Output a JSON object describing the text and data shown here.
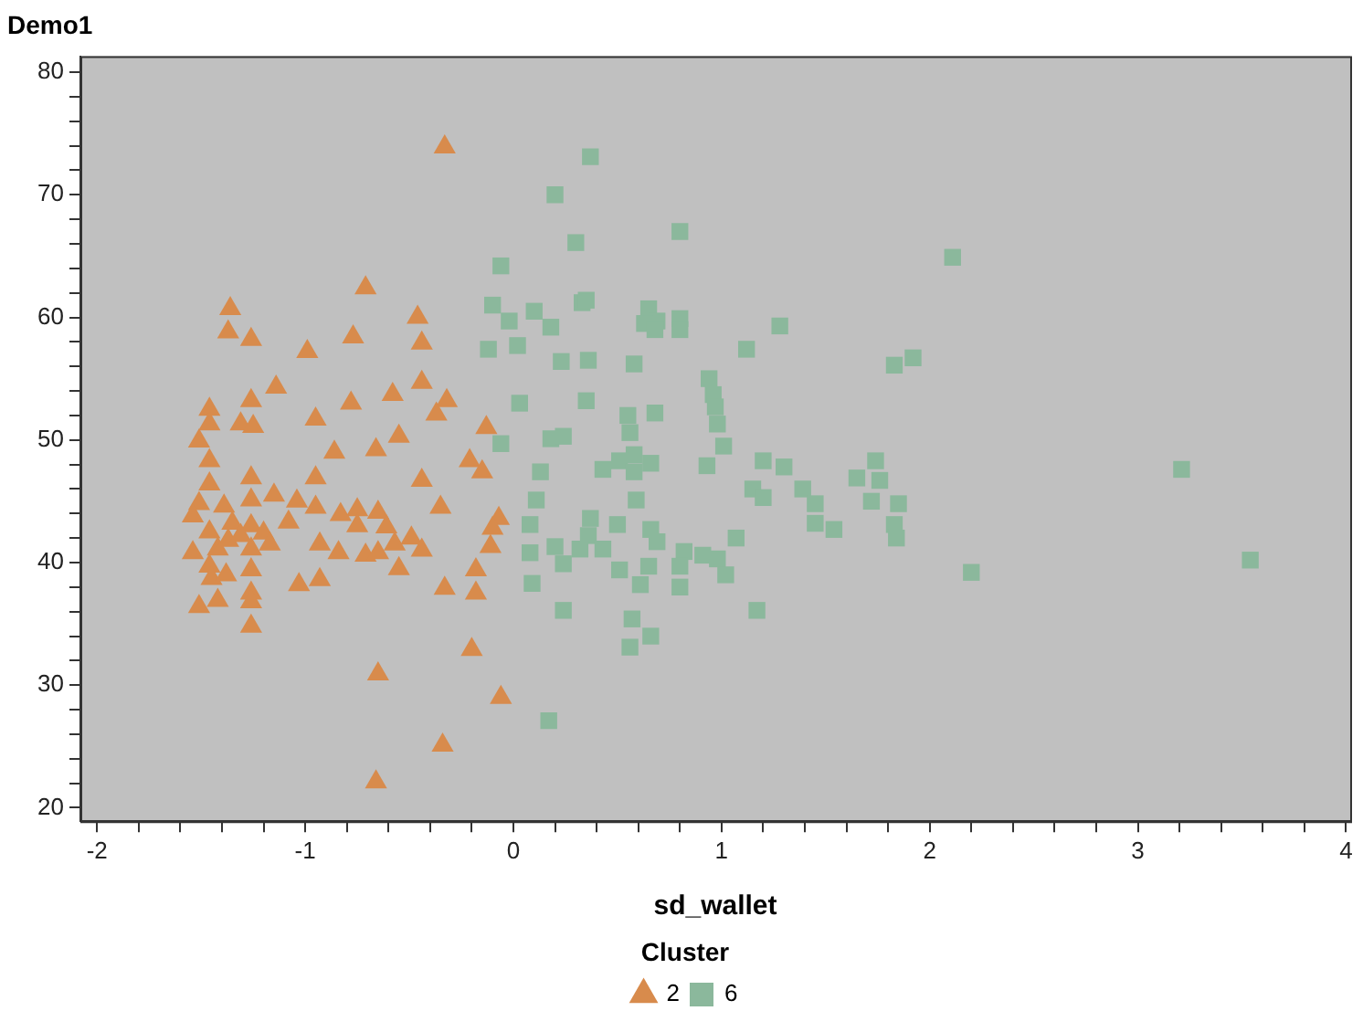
{
  "chart_data": {
    "type": "scatter",
    "title": "Demo1",
    "xlabel": "sd_wallet",
    "legend_title": "Cluster",
    "legend": "bottom",
    "grid": false,
    "xlim": [
      -2.08,
      4.02
    ],
    "ylim": [
      18.9,
      81.3
    ],
    "xticks": [
      -2,
      {
        "value": -1.8,
        "label": null
      },
      {
        "value": -1.6,
        "label": null
      },
      {
        "value": -1.4,
        "label": null
      },
      {
        "value": -1.2,
        "label": null
      },
      -1,
      {
        "value": -0.8,
        "label": null
      },
      {
        "value": -0.6,
        "label": null
      },
      {
        "value": -0.4,
        "label": null
      },
      {
        "value": -0.2,
        "label": null
      },
      0,
      {
        "value": 0.2,
        "label": null
      },
      {
        "value": 0.4,
        "label": null
      },
      {
        "value": 0.6,
        "label": null
      },
      {
        "value": 0.8,
        "label": null
      },
      1,
      {
        "value": 1.2,
        "label": null
      },
      {
        "value": 1.4,
        "label": null
      },
      {
        "value": 1.6,
        "label": null
      },
      {
        "value": 1.8,
        "label": null
      },
      2,
      {
        "value": 2.2,
        "label": null
      },
      {
        "value": 2.4,
        "label": null
      },
      {
        "value": 2.6,
        "label": null
      },
      {
        "value": 2.8,
        "label": null
      },
      3,
      {
        "value": 3.2,
        "label": null
      },
      {
        "value": 3.4,
        "label": null
      },
      {
        "value": 3.6,
        "label": null
      },
      {
        "value": 3.8,
        "label": null
      },
      4
    ],
    "yticks": [
      20,
      {
        "value": 22,
        "label": null
      },
      {
        "value": 24,
        "label": null
      },
      {
        "value": 26,
        "label": null
      },
      {
        "value": 28,
        "label": null
      },
      30,
      {
        "value": 32,
        "label": null
      },
      {
        "value": 34,
        "label": null
      },
      {
        "value": 36,
        "label": null
      },
      {
        "value": 38,
        "label": null
      },
      40,
      {
        "value": 42,
        "label": null
      },
      {
        "value": 44,
        "label": null
      },
      {
        "value": 46,
        "label": null
      },
      {
        "value": 48,
        "label": null
      },
      50,
      {
        "value": 52,
        "label": null
      },
      {
        "value": 54,
        "label": null
      },
      {
        "value": 56,
        "label": null
      },
      {
        "value": 58,
        "label": null
      },
      60,
      {
        "value": 62,
        "label": null
      },
      {
        "value": 64,
        "label": null
      },
      {
        "value": 66,
        "label": null
      },
      {
        "value": 68,
        "label": null
      },
      70,
      {
        "value": 72,
        "label": null
      },
      {
        "value": 74,
        "label": null
      },
      {
        "value": 76,
        "label": null
      },
      {
        "value": 78,
        "label": null
      },
      80
    ],
    "series": [
      {
        "name": "2",
        "color": "#d88b4c",
        "marker": "triangle",
        "x": [
          -0.33,
          -1.36,
          -1.37,
          -1.26,
          -0.71,
          -0.46,
          -0.44,
          -0.77,
          -0.99,
          -1.14,
          -1.26,
          -1.46,
          -1.46,
          -1.31,
          -1.25,
          -1.51,
          -1.46,
          -0.95,
          -0.78,
          -0.58,
          -0.44,
          -0.32,
          -0.37,
          -0.13,
          -0.55,
          -0.66,
          -0.86,
          -0.21,
          -0.15,
          -0.44,
          -0.95,
          -1.26,
          -1.46,
          -1.15,
          -1.26,
          -1.04,
          -1.51,
          -1.39,
          -0.95,
          -0.35,
          -1.54,
          -0.83,
          -0.75,
          -0.65,
          -1.35,
          -1.26,
          -1.08,
          -0.75,
          -0.61,
          -0.07,
          -0.1,
          -1.46,
          -1.2,
          -0.49,
          -0.57,
          -1.17,
          -0.93,
          -0.11,
          -1.54,
          -1.42,
          -1.26,
          -0.84,
          -0.71,
          -0.65,
          -0.44,
          -1.46,
          -1.26,
          -0.55,
          -0.18,
          -1.03,
          -0.93,
          -0.33,
          -1.45,
          -1.26,
          -0.18,
          -1.42,
          -1.51,
          -1.26,
          -1.26,
          -0.2,
          -0.65,
          -0.06,
          -0.34,
          -0.66,
          -1.38,
          -1.37,
          -1.31
        ],
        "values": [
          73.9,
          60.7,
          58.8,
          58.2,
          62.4,
          60.0,
          57.9,
          58.4,
          57.2,
          54.3,
          53.2,
          52.5,
          51.3,
          51.3,
          51.1,
          49.9,
          48.3,
          51.7,
          53.0,
          53.7,
          54.7,
          53.2,
          52.1,
          51.0,
          50.3,
          49.2,
          49.0,
          48.3,
          47.4,
          46.7,
          46.9,
          46.9,
          46.4,
          45.5,
          45.1,
          45.0,
          44.8,
          44.6,
          44.5,
          44.5,
          43.8,
          43.9,
          44.3,
          44.1,
          43.2,
          43.0,
          43.3,
          43.0,
          42.9,
          43.6,
          42.8,
          42.5,
          42.4,
          42.0,
          41.5,
          41.5,
          41.5,
          41.3,
          40.8,
          41.1,
          41.1,
          40.8,
          40.6,
          40.8,
          41.0,
          39.7,
          39.4,
          39.5,
          39.4,
          38.2,
          38.6,
          37.9,
          38.7,
          37.5,
          37.5,
          36.9,
          36.4,
          36.8,
          34.8,
          32.9,
          30.9,
          29.0,
          25.1,
          22.1,
          39.0,
          41.8,
          42.2
        ]
      },
      {
        "name": "6",
        "color": "#8bb89c",
        "marker": "square",
        "x": [
          0.37,
          0.2,
          0.8,
          0.3,
          2.11,
          -0.06,
          -0.1,
          0.1,
          -0.02,
          0.18,
          0.33,
          0.35,
          0.65,
          0.69,
          0.8,
          0.63,
          0.68,
          0.8,
          1.28,
          -0.12,
          0.02,
          0.23,
          0.36,
          0.58,
          1.12,
          1.83,
          1.92,
          0.94,
          0.03,
          0.35,
          0.96,
          0.97,
          0.55,
          0.68,
          0.98,
          -0.06,
          0.18,
          0.24,
          0.56,
          1.01,
          0.58,
          0.51,
          0.66,
          0.43,
          0.58,
          0.93,
          1.2,
          1.3,
          1.74,
          0.13,
          3.21,
          1.65,
          1.76,
          1.15,
          1.2,
          1.39,
          1.45,
          0.11,
          0.59,
          1.85,
          1.72,
          1.45,
          1.54,
          1.83,
          1.84,
          0.37,
          0.5,
          0.08,
          0.66,
          0.36,
          1.07,
          0.69,
          0.2,
          0.32,
          0.43,
          0.08,
          0.82,
          0.91,
          0.98,
          0.24,
          0.51,
          0.65,
          0.8,
          1.02,
          2.2,
          3.54,
          0.09,
          0.61,
          0.8,
          0.24,
          1.17,
          0.57,
          0.66,
          0.56,
          0.17
        ],
        "values": [
          73.1,
          70.0,
          67.0,
          66.1,
          64.9,
          64.2,
          61.0,
          60.5,
          59.7,
          59.2,
          61.2,
          61.4,
          60.7,
          59.7,
          59.9,
          59.5,
          59.0,
          59.0,
          59.3,
          57.4,
          57.7,
          56.4,
          56.5,
          56.2,
          57.4,
          56.1,
          56.7,
          55.0,
          53.0,
          53.2,
          53.7,
          52.7,
          52.0,
          52.2,
          51.3,
          49.7,
          50.1,
          50.3,
          50.6,
          49.5,
          48.8,
          48.3,
          48.1,
          47.6,
          47.4,
          47.9,
          48.3,
          47.8,
          48.3,
          47.4,
          47.6,
          46.9,
          46.7,
          46.0,
          45.3,
          46.0,
          44.8,
          45.1,
          45.1,
          44.8,
          45.0,
          43.2,
          42.7,
          43.1,
          42.0,
          43.6,
          43.1,
          43.1,
          42.7,
          42.2,
          42.0,
          41.7,
          41.3,
          41.1,
          41.1,
          40.8,
          40.9,
          40.6,
          40.3,
          39.9,
          39.4,
          39.7,
          39.7,
          39.0,
          39.2,
          40.2,
          38.3,
          38.2,
          38.0,
          36.1,
          36.1,
          35.4,
          34.0,
          33.1,
          27.1
        ]
      }
    ]
  }
}
